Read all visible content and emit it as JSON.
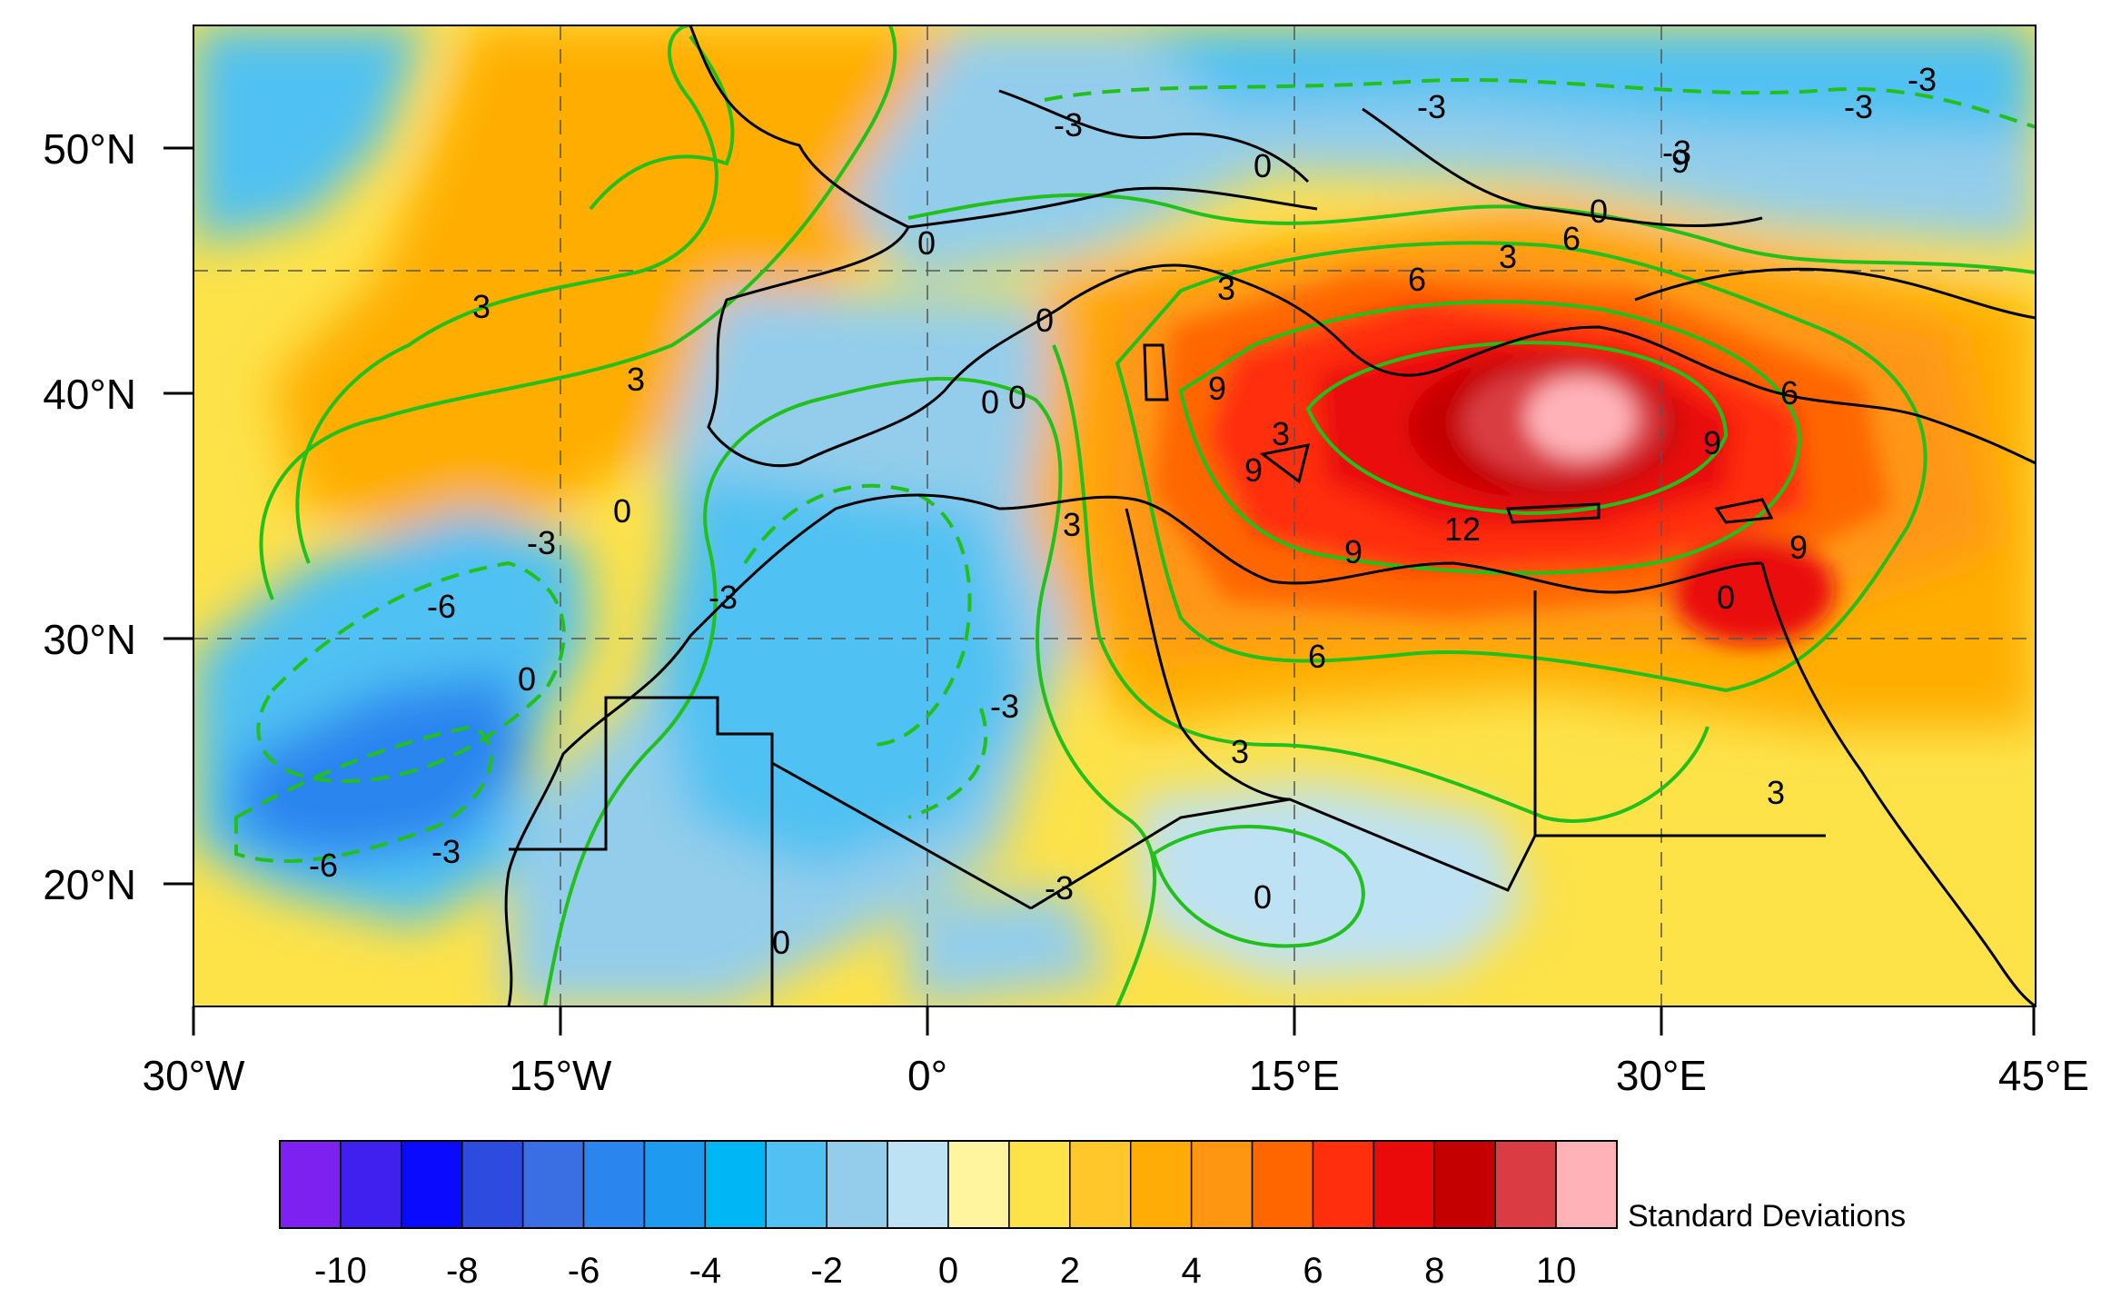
{
  "map": {
    "lat_ticks": [
      "50°N",
      "40°N",
      "30°N",
      "20°N"
    ],
    "lon_ticks": [
      "30°W",
      "15°W",
      "0°",
      "15°E",
      "30°E",
      "45°E"
    ],
    "contour_labels": [
      "3",
      "3",
      "0",
      "0",
      "-3",
      "0",
      "-3",
      "-3",
      "3",
      "6",
      "6",
      "3",
      "-3",
      "0",
      "-3",
      "-6",
      "0",
      "-3",
      "-6",
      "0",
      "-3",
      "0",
      "-3",
      "3",
      "9",
      "9",
      "9",
      "12",
      "9",
      "6",
      "3",
      "-3",
      "3",
      "0",
      "0",
      "0",
      "0",
      "9",
      "9",
      "6",
      "3",
      "-3"
    ]
  },
  "colorbar": {
    "title": "Standard Deviations",
    "tick_labels": [
      "-10",
      "-8",
      "-6",
      "-4",
      "-2",
      "0",
      "2",
      "4",
      "6",
      "8",
      "10"
    ],
    "colors": [
      "#7c21f0",
      "#3f20ee",
      "#0a0aff",
      "#2e4bdf",
      "#3a6fe4",
      "#2b85ef",
      "#1e9bf0",
      "#00b6f5",
      "#50c1f2",
      "#93cdeb",
      "#bde2f4",
      "#fff59f",
      "#fde248",
      "#ffc72a",
      "#ffad06",
      "#ff9612",
      "#ff6600",
      "#ff2e0d",
      "#ea0a0a",
      "#c50000",
      "#d93d43",
      "#ffb3b8"
    ]
  }
}
